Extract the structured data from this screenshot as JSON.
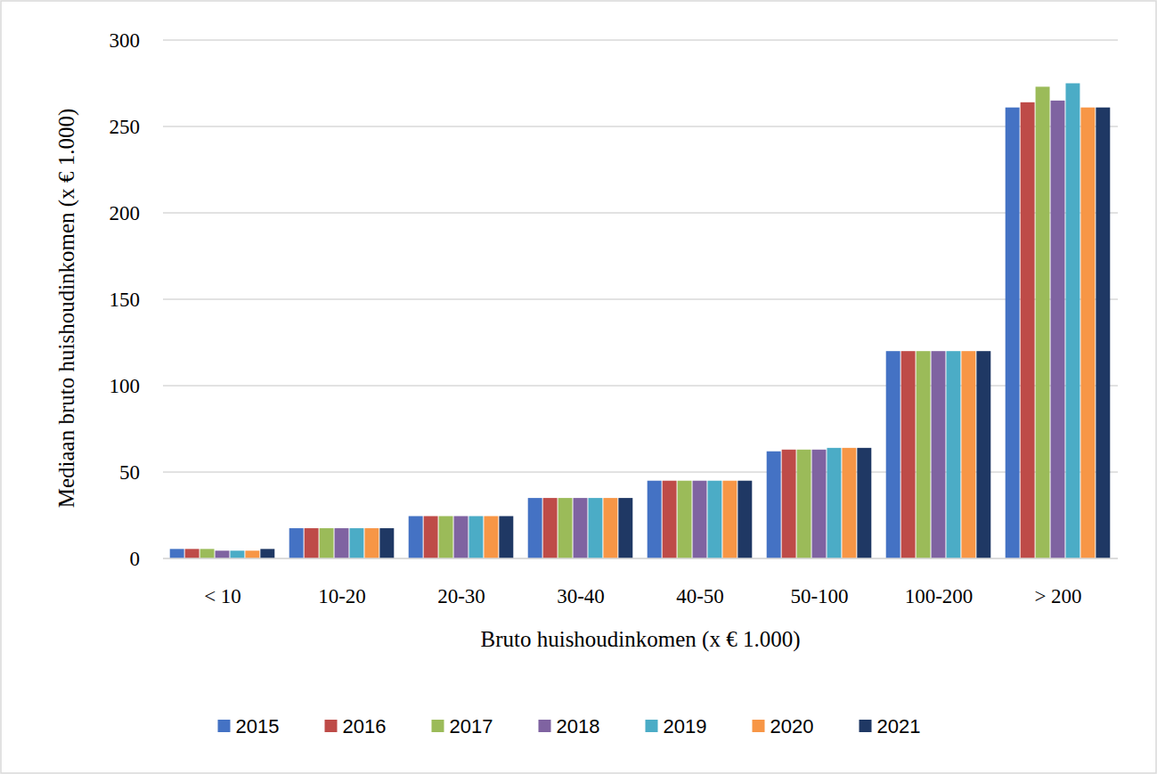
{
  "chart_data": {
    "type": "bar",
    "x_label": "Bruto huishoudinkomen (x € 1.000)",
    "y_label": "Mediaan bruto huishoudinkomen (x € 1.000)",
    "categories": [
      "< 10",
      "10-20",
      "20-30",
      "30-40",
      "40-50",
      "50-100",
      "100-200",
      "> 200"
    ],
    "series": [
      {
        "name": "2015",
        "color": "#4472c4",
        "values": [
          5.5,
          17.5,
          24.5,
          35,
          45,
          62,
          120,
          261
        ]
      },
      {
        "name": "2016",
        "color": "#be4b48",
        "values": [
          5.5,
          17.5,
          24.5,
          35,
          45,
          63,
          120,
          264
        ]
      },
      {
        "name": "2017",
        "color": "#9bbb59",
        "values": [
          5.5,
          17.5,
          24.5,
          35,
          45,
          63,
          120,
          273
        ]
      },
      {
        "name": "2018",
        "color": "#7f63a1",
        "values": [
          4.5,
          17.5,
          24.5,
          35,
          45,
          63,
          120,
          265
        ]
      },
      {
        "name": "2019",
        "color": "#4bacc6",
        "values": [
          4.5,
          17.5,
          24.5,
          35,
          45,
          64,
          120,
          275
        ]
      },
      {
        "name": "2020",
        "color": "#f79646",
        "values": [
          4.5,
          17.5,
          24.5,
          35,
          45,
          64,
          120,
          261
        ]
      },
      {
        "name": "2021",
        "color": "#1f3864",
        "values": [
          5.5,
          17.5,
          24.5,
          35,
          45,
          64,
          120,
          261
        ]
      }
    ],
    "ylim": [
      0,
      300
    ],
    "yticks": [
      0,
      50,
      100,
      150,
      200,
      250,
      300
    ],
    "grid": true,
    "legend": "bottom"
  }
}
